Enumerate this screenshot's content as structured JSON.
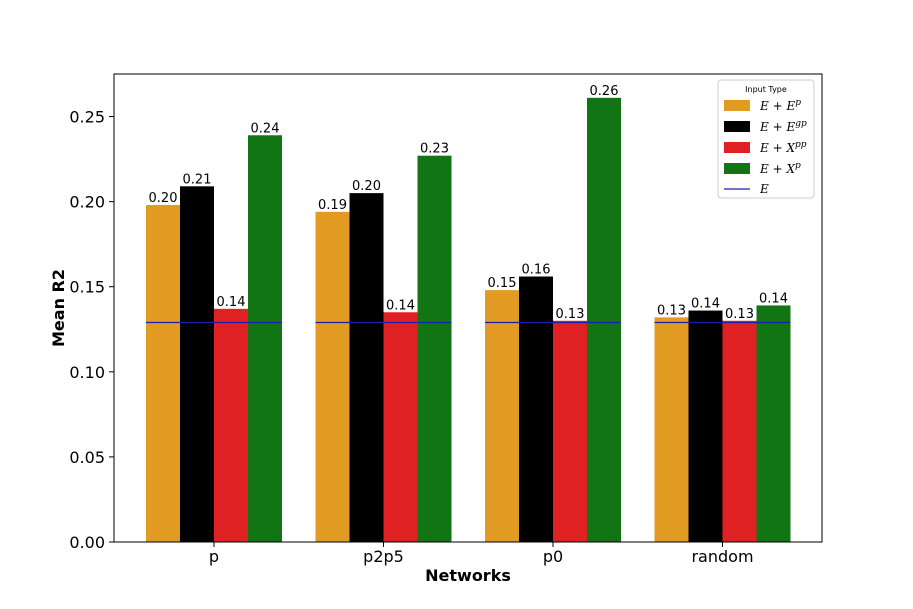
{
  "chart_data": {
    "type": "bar",
    "xlabel": "Networks",
    "ylabel": "Mean R2",
    "ylim": [
      0,
      0.275
    ],
    "yticks": [
      0.0,
      0.05,
      0.1,
      0.15,
      0.2,
      0.25
    ],
    "ytick_labels": [
      "0.00",
      "0.05",
      "0.10",
      "0.15",
      "0.20",
      "0.25"
    ],
    "categories": [
      "p",
      "p2p5",
      "p0",
      "random"
    ],
    "series": [
      {
        "name": "E + E^p",
        "base": "E + E",
        "sup": "p",
        "color": "#e19b22",
        "values": [
          0.198,
          0.194,
          0.148,
          0.132
        ],
        "labels": [
          "0.20",
          "0.19",
          "0.15",
          "0.13"
        ]
      },
      {
        "name": "E + E^gp",
        "base": "E + E",
        "sup": "gp",
        "color": "#000000",
        "values": [
          0.209,
          0.205,
          0.156,
          0.136
        ],
        "labels": [
          "0.21",
          "0.20",
          "0.16",
          "0.14"
        ]
      },
      {
        "name": "E + X^pp",
        "base": "E + X",
        "sup": "pp",
        "color": "#df2123",
        "values": [
          0.137,
          0.135,
          0.13,
          0.13
        ],
        "labels": [
          "0.14",
          "0.14",
          "0.13",
          "0.13"
        ]
      },
      {
        "name": "E + X^p",
        "base": "E + X",
        "sup": "p",
        "color": "#107512",
        "values": [
          0.239,
          0.227,
          0.261,
          0.139
        ],
        "labels": [
          "0.24",
          "0.23",
          "0.26",
          "0.14"
        ]
      }
    ],
    "baseline": {
      "name": "E",
      "value": 0.129,
      "color": "#1c1cb0"
    },
    "legend": {
      "title": "Input Type",
      "placement": "top-right"
    },
    "grid": false
  }
}
